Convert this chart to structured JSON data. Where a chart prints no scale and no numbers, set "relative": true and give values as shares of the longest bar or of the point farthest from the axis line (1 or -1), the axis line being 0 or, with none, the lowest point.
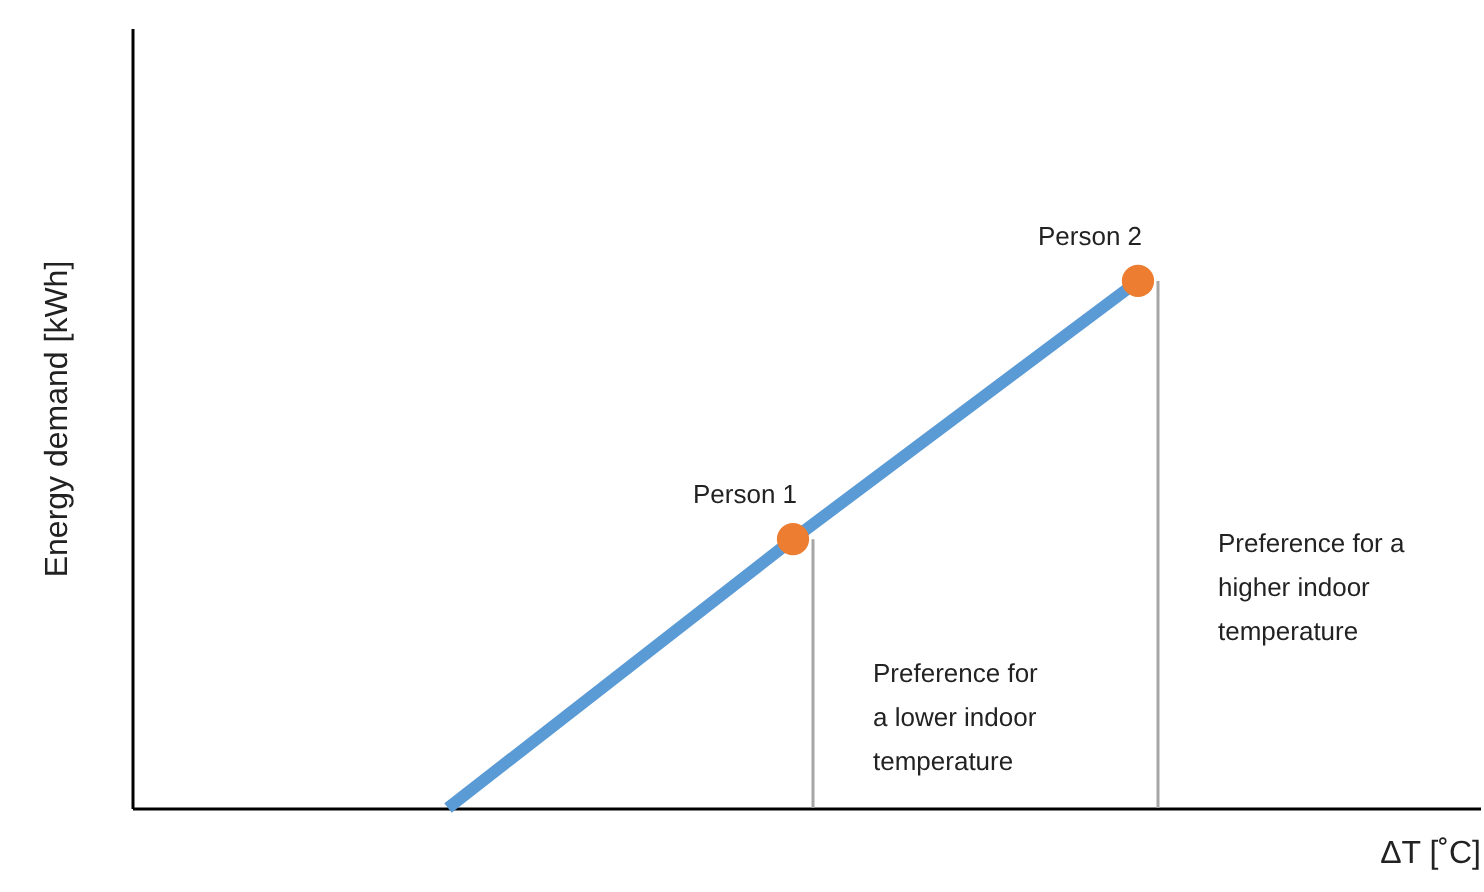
{
  "chart_data": {
    "type": "line",
    "relative": true,
    "xlabel": "ΔT   [˚C]",
    "ylabel": "Energy demand   [kWh]",
    "categories": [
      null,
      null,
      null
    ],
    "series": [
      {
        "color": "#5b9bd5",
        "values": [
          0,
          0.51,
          1
        ]
      }
    ],
    "annotations": [
      "Person 1",
      "Person 2",
      "Preference for\na lower indoor\ntemperature",
      "Preference for a\nhigher indoor\ntemperature"
    ]
  }
}
